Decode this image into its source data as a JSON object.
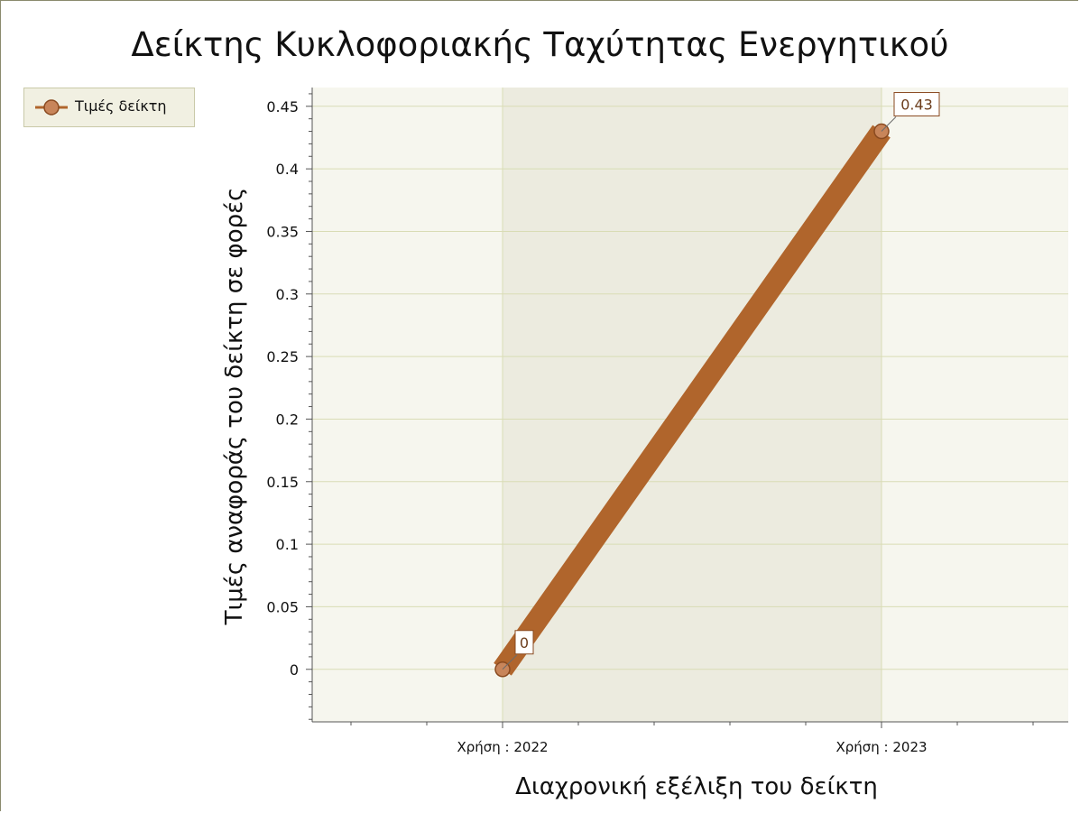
{
  "chart_data": {
    "type": "line",
    "title": "Δείκτης Κυκλοφοριακής Ταχύτητας Ενεργητικού",
    "xlabel": "Διαχρονική εξέλιξη του δείκτη",
    "ylabel": "Τιμές αναφοράς του δείκτη σε φορές",
    "categories": [
      "Χρήση : 2022",
      "Χρήση : 2023"
    ],
    "series": [
      {
        "name": "Τιμές δείκτη",
        "values": [
          0,
          0.43
        ],
        "data_labels": [
          "0",
          "0.43"
        ],
        "color": "#b0652c"
      }
    ],
    "y_ticks": [
      "0",
      "0.05",
      "0.1",
      "0.15",
      "0.2",
      "0.25",
      "0.3",
      "0.35",
      "0.4",
      "0.45"
    ],
    "ylim": [
      -0.042,
      0.465
    ],
    "grid": true,
    "legend_position": "top-left"
  },
  "colors": {
    "plot_background": "#f6f6ee",
    "band_shade": "#ecebdf",
    "gridline": "#d9dcb5",
    "axis": "#555555",
    "series": "#b0652c",
    "marker_fill": "#c8855a",
    "legend_background": "#f1f0e2"
  }
}
